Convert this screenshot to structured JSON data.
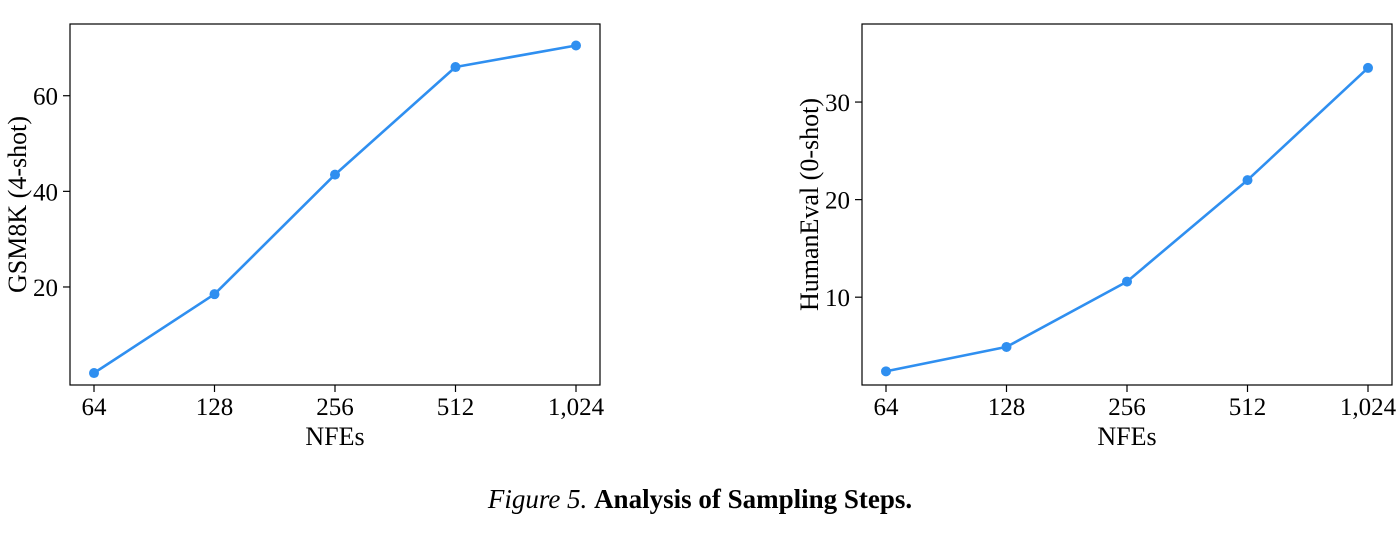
{
  "caption": {
    "figure_label": "Figure 5.",
    "title": "Analysis of Sampling Steps."
  },
  "colors": {
    "line": "#2f8ff0",
    "axis": "#000000"
  },
  "chart_data": [
    {
      "type": "line",
      "xlabel": "NFEs",
      "ylabel": "GSM8K (4-shot)",
      "x": [
        "64",
        "128",
        "256",
        "512",
        "1,024"
      ],
      "x_scale": "log2",
      "series": [
        {
          "values": [
            2.0,
            18.5,
            43.5,
            66.0,
            70.5
          ]
        }
      ],
      "yticks": [
        20,
        40,
        60
      ],
      "ylim": [
        -0.5,
        75.0
      ],
      "grid": false,
      "legend": "none"
    },
    {
      "type": "line",
      "xlabel": "NFEs",
      "ylabel": "HumanEval (0-shot)",
      "x": [
        "64",
        "128",
        "256",
        "512",
        "1,024"
      ],
      "x_scale": "log2",
      "series": [
        {
          "values": [
            2.4,
            4.9,
            11.6,
            22.0,
            33.5
          ]
        }
      ],
      "yticks": [
        10,
        20,
        30
      ],
      "ylim": [
        1.0,
        38.0
      ],
      "grid": false,
      "legend": "none"
    }
  ]
}
